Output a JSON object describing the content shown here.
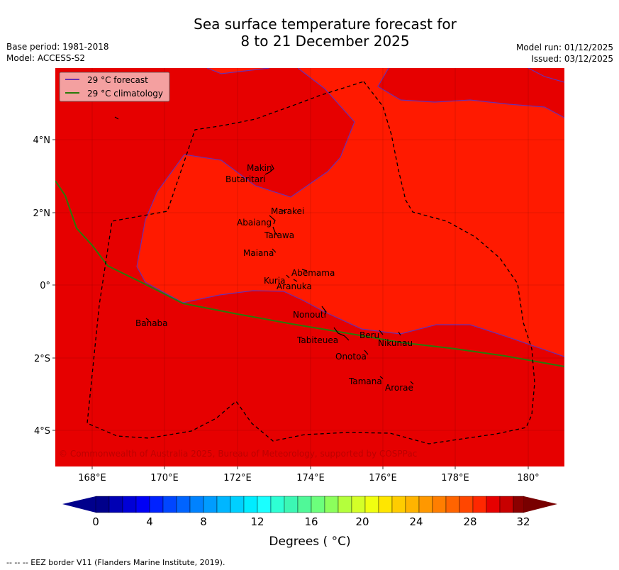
{
  "title_line1": "Sea surface temperature forecast for",
  "title_line2": "8 to 21 December 2025",
  "base_period": "Base period: 1981-2018",
  "model": "Model: ACCESS-S2",
  "model_run": "Model run: 01/12/2025",
  "issued": "Issued: 03/12/2025",
  "legend": {
    "forecast": "29 °C  forecast",
    "climatology": "29 °C  climatology"
  },
  "lat_ticks": [
    "4°N",
    "2°N",
    "0°",
    "2°S",
    "4°S"
  ],
  "lon_ticks": [
    "168°E",
    "170°E",
    "172°E",
    "174°E",
    "176°E",
    "178°E",
    "180°"
  ],
  "islands": [
    "Makin",
    "Butaritari",
    "Marakei",
    "Abaiang",
    "Tarawa",
    "Maiana",
    "Abemama",
    "Kuria",
    "Aranuka",
    "Banaba",
    "Nonouti",
    "Beru",
    "Tabiteuea",
    "Nikunau",
    "Onotoa",
    "Tamana",
    "Arorae"
  ],
  "copyright": "© Commonwealth of Australia 2025, Bureau of Meteorology, supported by COSPPac",
  "colorbar": {
    "ticks": [
      "0",
      "4",
      "8",
      "12",
      "16",
      "20",
      "24",
      "28",
      "32"
    ],
    "label": "Degrees ( °C)"
  },
  "footnote": "--  --  -- EEZ border V11 (Flanders Marine Institute, 2019).",
  "colors": {
    "sst_29_30": "#e60000",
    "sst_30_31": "#ff1a00",
    "forecast_line": "#6a2fb0",
    "climatology_line": "#2a7a0a",
    "legend_bg": "#f4a0a0"
  }
}
